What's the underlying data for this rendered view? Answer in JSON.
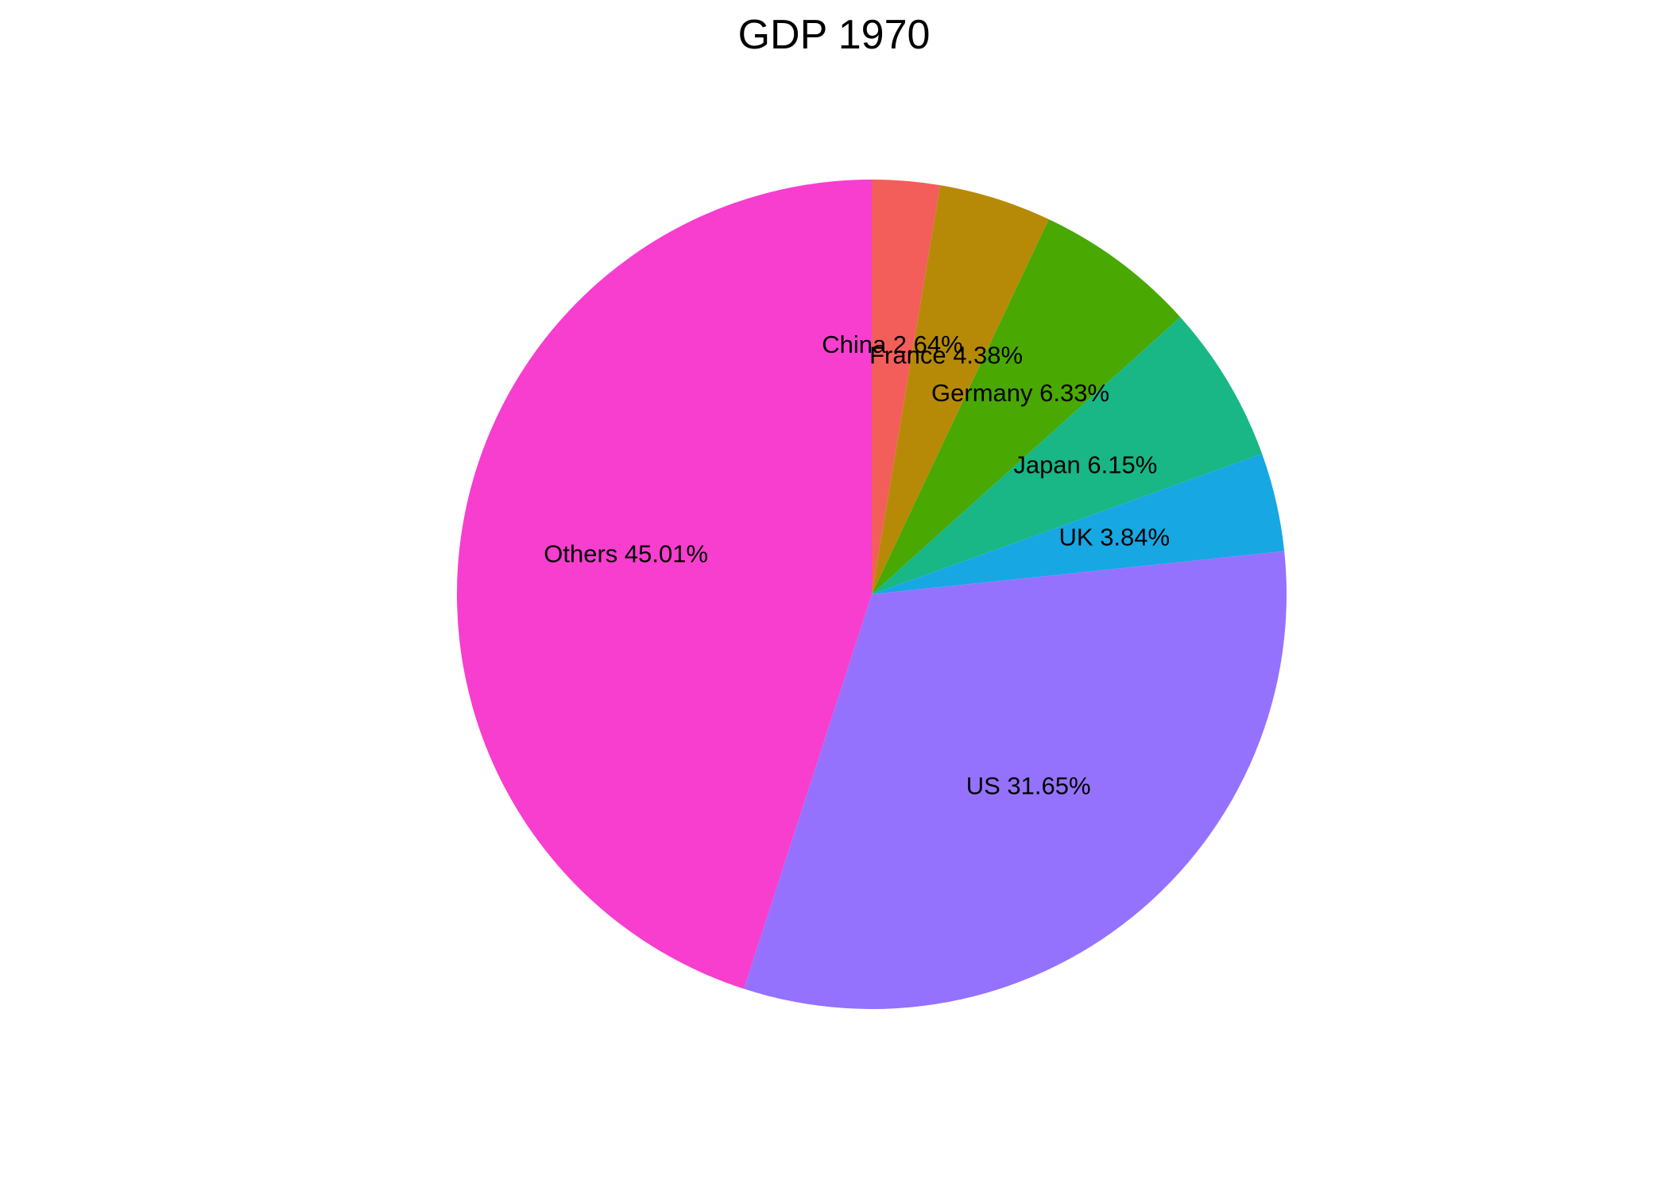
{
  "chart_data": {
    "type": "pie",
    "title": "GDP 1970",
    "start": "top",
    "direction": "clockwise",
    "slices": [
      {
        "label": "China 2.64%",
        "name": "China",
        "value": 2.64,
        "color": "#F35E5A"
      },
      {
        "label": "France 4.38%",
        "name": "France",
        "value": 4.38,
        "color": "#B68A06"
      },
      {
        "label": "Germany 6.33%",
        "name": "Germany",
        "value": 6.33,
        "color": "#49A802"
      },
      {
        "label": "Japan 6.15%",
        "name": "Japan",
        "value": 6.15,
        "color": "#18B785"
      },
      {
        "label": "UK 3.84%",
        "name": "UK",
        "value": 3.84,
        "color": "#17A7E3"
      },
      {
        "label": "US 31.65%",
        "name": "US",
        "value": 31.65,
        "color": "#9572FD"
      },
      {
        "label": "Others 45.01%",
        "name": "Others",
        "value": 45.01,
        "color": "#F73ECF"
      }
    ]
  }
}
